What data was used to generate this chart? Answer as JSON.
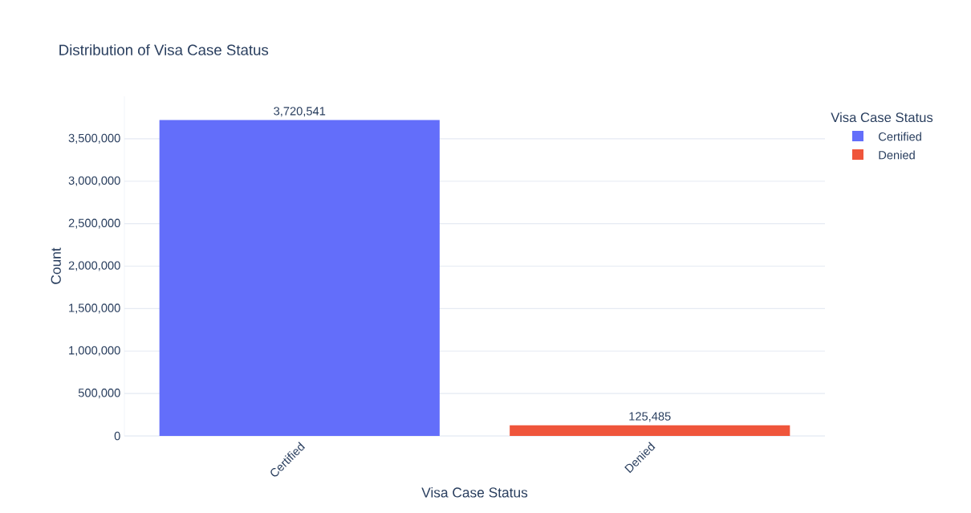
{
  "chart_data": {
    "type": "bar",
    "title": "Distribution of Visa Case Status",
    "xlabel": "Visa Case Status",
    "ylabel": "Count",
    "legend_title": "Visa Case Status",
    "categories": [
      "Certified",
      "Denied"
    ],
    "series": [
      {
        "name": "Certified",
        "color": "#636efa",
        "values": [
          3720541,
          null
        ],
        "value_labels": [
          "3,720,541",
          null
        ]
      },
      {
        "name": "Denied",
        "color": "#ef553b",
        "values": [
          null,
          125485
        ],
        "value_labels": [
          null,
          "125,485"
        ]
      }
    ],
    "ylim": [
      0,
      4000000
    ],
    "yticks": [
      {
        "value": 0,
        "label": "0"
      },
      {
        "value": 500000,
        "label": "500,000"
      },
      {
        "value": 1000000,
        "label": "1,000,000"
      },
      {
        "value": 1500000,
        "label": "1,500,000"
      },
      {
        "value": 2000000,
        "label": "2,000,000"
      },
      {
        "value": 2500000,
        "label": "2,500,000"
      },
      {
        "value": 3000000,
        "label": "3,000,000"
      },
      {
        "value": 3500000,
        "label": "3,500,000"
      }
    ],
    "grid": "y",
    "legend": "top right"
  }
}
